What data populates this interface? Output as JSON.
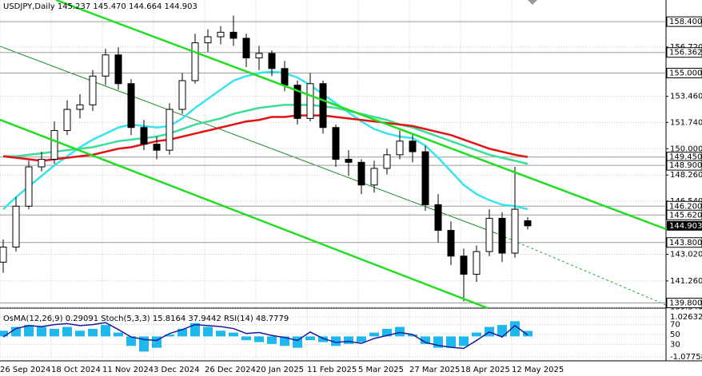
{
  "chart_data": {
    "type": "candlestick",
    "title": "USDJPY,Daily  145.237 145.470 144.664 144.903",
    "categories": [
      "26 Sep 2024",
      null,
      null,
      null,
      "18 Oct 2024",
      null,
      null,
      null,
      "11 Nov 2024",
      null,
      null,
      null,
      "3 Dec 2024",
      null,
      null,
      null,
      "26 Dec 2024",
      null,
      null,
      null,
      "20 Jan 2025",
      null,
      null,
      null,
      "11 Feb 2025",
      null,
      null,
      null,
      "5 Mar 2025",
      null,
      null,
      null,
      "27 Mar 2025",
      null,
      null,
      null,
      "18 Apr 2025",
      null,
      null,
      null,
      "12 May 2025",
      null
    ],
    "open": [
      142.5,
      143.5,
      146.2,
      148.8,
      149.3,
      151.2,
      152.6,
      152.9,
      154.8,
      156.2,
      154.3,
      151.4,
      150.3,
      149.9,
      152.6,
      154.5,
      157.0,
      157.4,
      157.7,
      157.3,
      156.0,
      156.3,
      155.3,
      154.2,
      152.0,
      154.3,
      151.4,
      149.3,
      149.1,
      147.6,
      148.7,
      149.6,
      150.5,
      149.8,
      146.3,
      144.6,
      142.9,
      141.7,
      143.2,
      145.4,
      143.1,
      145.237
    ],
    "high": [
      144.0,
      146.8,
      149.2,
      149.8,
      151.8,
      153.2,
      153.6,
      155.2,
      156.6,
      156.7,
      154.6,
      151.9,
      150.8,
      153.0,
      155.0,
      157.6,
      157.9,
      158.1,
      158.8,
      157.6,
      156.8,
      156.5,
      155.8,
      154.5,
      155.0,
      154.5,
      151.6,
      149.9,
      149.3,
      149.2,
      150.0,
      151.2,
      151.0,
      150.2,
      147.0,
      145.2,
      143.4,
      143.6,
      146.0,
      145.8,
      148.8,
      145.47
    ],
    "low": [
      141.8,
      143.2,
      146.0,
      148.5,
      149.0,
      150.9,
      152.0,
      152.5,
      154.2,
      153.9,
      150.9,
      149.9,
      149.3,
      149.6,
      152.3,
      154.3,
      156.4,
      156.9,
      156.8,
      155.4,
      155.2,
      154.8,
      153.8,
      151.6,
      151.8,
      151.0,
      148.8,
      148.2,
      147.0,
      147.1,
      148.3,
      149.3,
      149.1,
      145.9,
      143.8,
      142.3,
      139.9,
      141.2,
      142.9,
      142.5,
      142.8,
      144.664
    ],
    "close": [
      143.5,
      146.2,
      148.8,
      149.3,
      151.2,
      152.6,
      152.9,
      154.8,
      156.2,
      154.3,
      151.4,
      150.3,
      149.9,
      152.6,
      154.5,
      157.0,
      157.4,
      157.7,
      157.3,
      156.0,
      156.3,
      155.3,
      154.2,
      152.0,
      154.3,
      151.4,
      149.3,
      149.1,
      147.6,
      148.7,
      149.6,
      150.5,
      149.8,
      146.3,
      144.6,
      142.9,
      141.7,
      143.2,
      145.4,
      143.1,
      146.0,
      144.903
    ],
    "series": [
      {
        "color": "#38e4ec",
        "values": [
          146.0,
          146.8,
          147.5,
          148.2,
          148.9,
          149.5,
          150.1,
          150.6,
          151.0,
          151.4,
          151.6,
          151.5,
          151.4,
          151.5,
          152.0,
          152.7,
          153.3,
          153.9,
          154.5,
          154.8,
          155.0,
          155.1,
          155.0,
          154.7,
          154.2,
          153.6,
          153.0,
          152.4,
          151.8,
          151.3,
          151.0,
          150.8,
          150.7,
          150.2,
          149.4,
          148.5,
          147.6,
          147.0,
          146.6,
          146.3,
          146.2,
          146.0
        ]
      },
      {
        "color": "#3ddc98",
        "values": [
          149.5,
          149.5,
          149.6,
          149.7,
          149.8,
          149.9,
          150.0,
          150.1,
          150.3,
          150.5,
          150.6,
          150.7,
          150.8,
          151.0,
          151.3,
          151.6,
          151.8,
          152.0,
          152.3,
          152.5,
          152.7,
          152.8,
          152.9,
          152.9,
          152.9,
          152.8,
          152.7,
          152.5,
          152.3,
          152.1,
          151.9,
          151.6,
          151.4,
          151.1,
          150.8,
          150.5,
          150.2,
          149.9,
          149.6,
          149.4,
          149.2,
          149.0
        ]
      },
      {
        "color": "#e01414",
        "values": [
          149.5,
          149.4,
          149.3,
          149.2,
          149.3,
          149.4,
          149.5,
          149.6,
          149.8,
          150.0,
          150.1,
          150.3,
          150.5,
          150.6,
          150.8,
          151.0,
          151.2,
          151.4,
          151.6,
          151.8,
          151.9,
          152.1,
          152.1,
          152.2,
          152.2,
          152.2,
          152.1,
          152.0,
          151.9,
          151.8,
          151.7,
          151.6,
          151.5,
          151.3,
          151.1,
          150.9,
          150.6,
          150.3,
          150.0,
          149.8,
          149.6,
          149.45
        ]
      }
    ],
    "ylim": [
      139.46,
      159.83
    ],
    "yticks": [
      {
        "value": 156.72,
        "label": "156.720"
      },
      {
        "value": 153.46,
        "label": "153.460"
      },
      {
        "value": 151.74,
        "label": "151.740"
      },
      {
        "value": 150.0,
        "label": "150.000"
      },
      {
        "value": 148.26,
        "label": "148.260"
      },
      {
        "value": 146.54,
        "label": "146.540"
      },
      {
        "value": 143.02,
        "label": "143.020"
      },
      {
        "value": 141.26,
        "label": "141.260"
      },
      {
        "value": 139.54,
        "label": "139.540"
      }
    ],
    "levels": [
      {
        "value": 158.4,
        "label": "158.400"
      },
      {
        "value": 156.362,
        "label": "156.362"
      },
      {
        "value": 155.0,
        "label": "155.000"
      },
      {
        "value": 149.45,
        "label": "149.450"
      },
      {
        "value": 148.9,
        "label": "148.900"
      },
      {
        "value": 146.2,
        "label": "146.200"
      },
      {
        "value": 145.62,
        "label": "145.620"
      },
      {
        "value": 143.8,
        "label": "143.800"
      },
      {
        "value": 139.8,
        "label": "139.800"
      }
    ],
    "current": {
      "value": 144.903,
      "label": "144.903"
    },
    "grid": true,
    "indicator": {
      "title": "OsMA(12,26,9) 0.29091  Stoch(5,3,3) 15.8164 37.9442  RSI(14) 48.7779",
      "osma_color": "#1fb8ee",
      "osma": [
        0.3,
        0.5,
        0.6,
        0.5,
        0.4,
        0.5,
        0.3,
        0.4,
        0.6,
        0.2,
        -0.5,
        -0.8,
        -0.6,
        0.1,
        0.4,
        0.7,
        0.5,
        0.3,
        0.2,
        -0.2,
        -0.3,
        -0.4,
        -0.5,
        -0.6,
        -0.2,
        -0.3,
        -0.5,
        -0.4,
        -0.3,
        0.2,
        0.4,
        0.5,
        0.1,
        -0.4,
        -0.6,
        -0.6,
        -0.5,
        0.2,
        0.5,
        0.6,
        0.8,
        0.29091
      ],
      "osma_ylim": [
        -1.07758,
        1.02632
      ],
      "rsi_color": "#1a1aa0",
      "rsi": [
        45,
        62,
        68,
        66,
        70,
        72,
        68,
        70,
        74,
        60,
        45,
        40,
        38,
        52,
        60,
        70,
        68,
        66,
        62,
        52,
        54,
        48,
        44,
        38,
        55,
        42,
        34,
        36,
        32,
        42,
        48,
        54,
        50,
        34,
        28,
        24,
        22,
        38,
        55,
        45,
        68,
        48.7779
      ],
      "rsi_ylim": [
        0,
        100
      ],
      "rsi_ticks": [
        70,
        50,
        30
      ]
    }
  }
}
